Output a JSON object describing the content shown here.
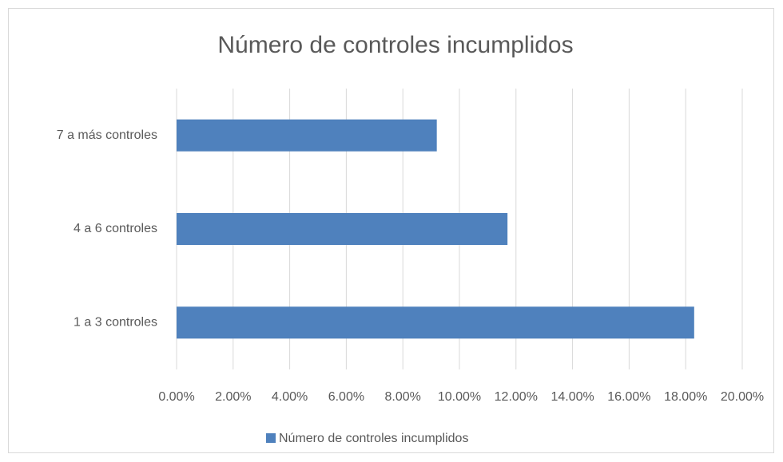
{
  "chart_data": {
    "type": "bar",
    "orientation": "horizontal",
    "title": "Número de controles incumplidos",
    "categories": [
      "1 a 3 controles",
      "4 a 6 controles",
      "7 a más controles"
    ],
    "series": [
      {
        "name": "Número de controles incumplidos",
        "color": "#4f81bd",
        "values": [
          18.3,
          11.7,
          9.2
        ]
      }
    ],
    "xlim": [
      0,
      20
    ],
    "xticks": [
      {
        "value": 0,
        "label": "0.00%"
      },
      {
        "value": 2,
        "label": "2.00%"
      },
      {
        "value": 4,
        "label": "4.00%"
      },
      {
        "value": 6,
        "label": "6.00%"
      },
      {
        "value": 8,
        "label": "8.00%"
      },
      {
        "value": 10,
        "label": "10.00%"
      },
      {
        "value": 12,
        "label": "12.00%"
      },
      {
        "value": 14,
        "label": "14.00%"
      },
      {
        "value": 16,
        "label": "16.00%"
      },
      {
        "value": 18,
        "label": "18.00%"
      },
      {
        "value": 20,
        "label": "20.00%"
      }
    ],
    "grid": true,
    "legend": "bottom"
  }
}
